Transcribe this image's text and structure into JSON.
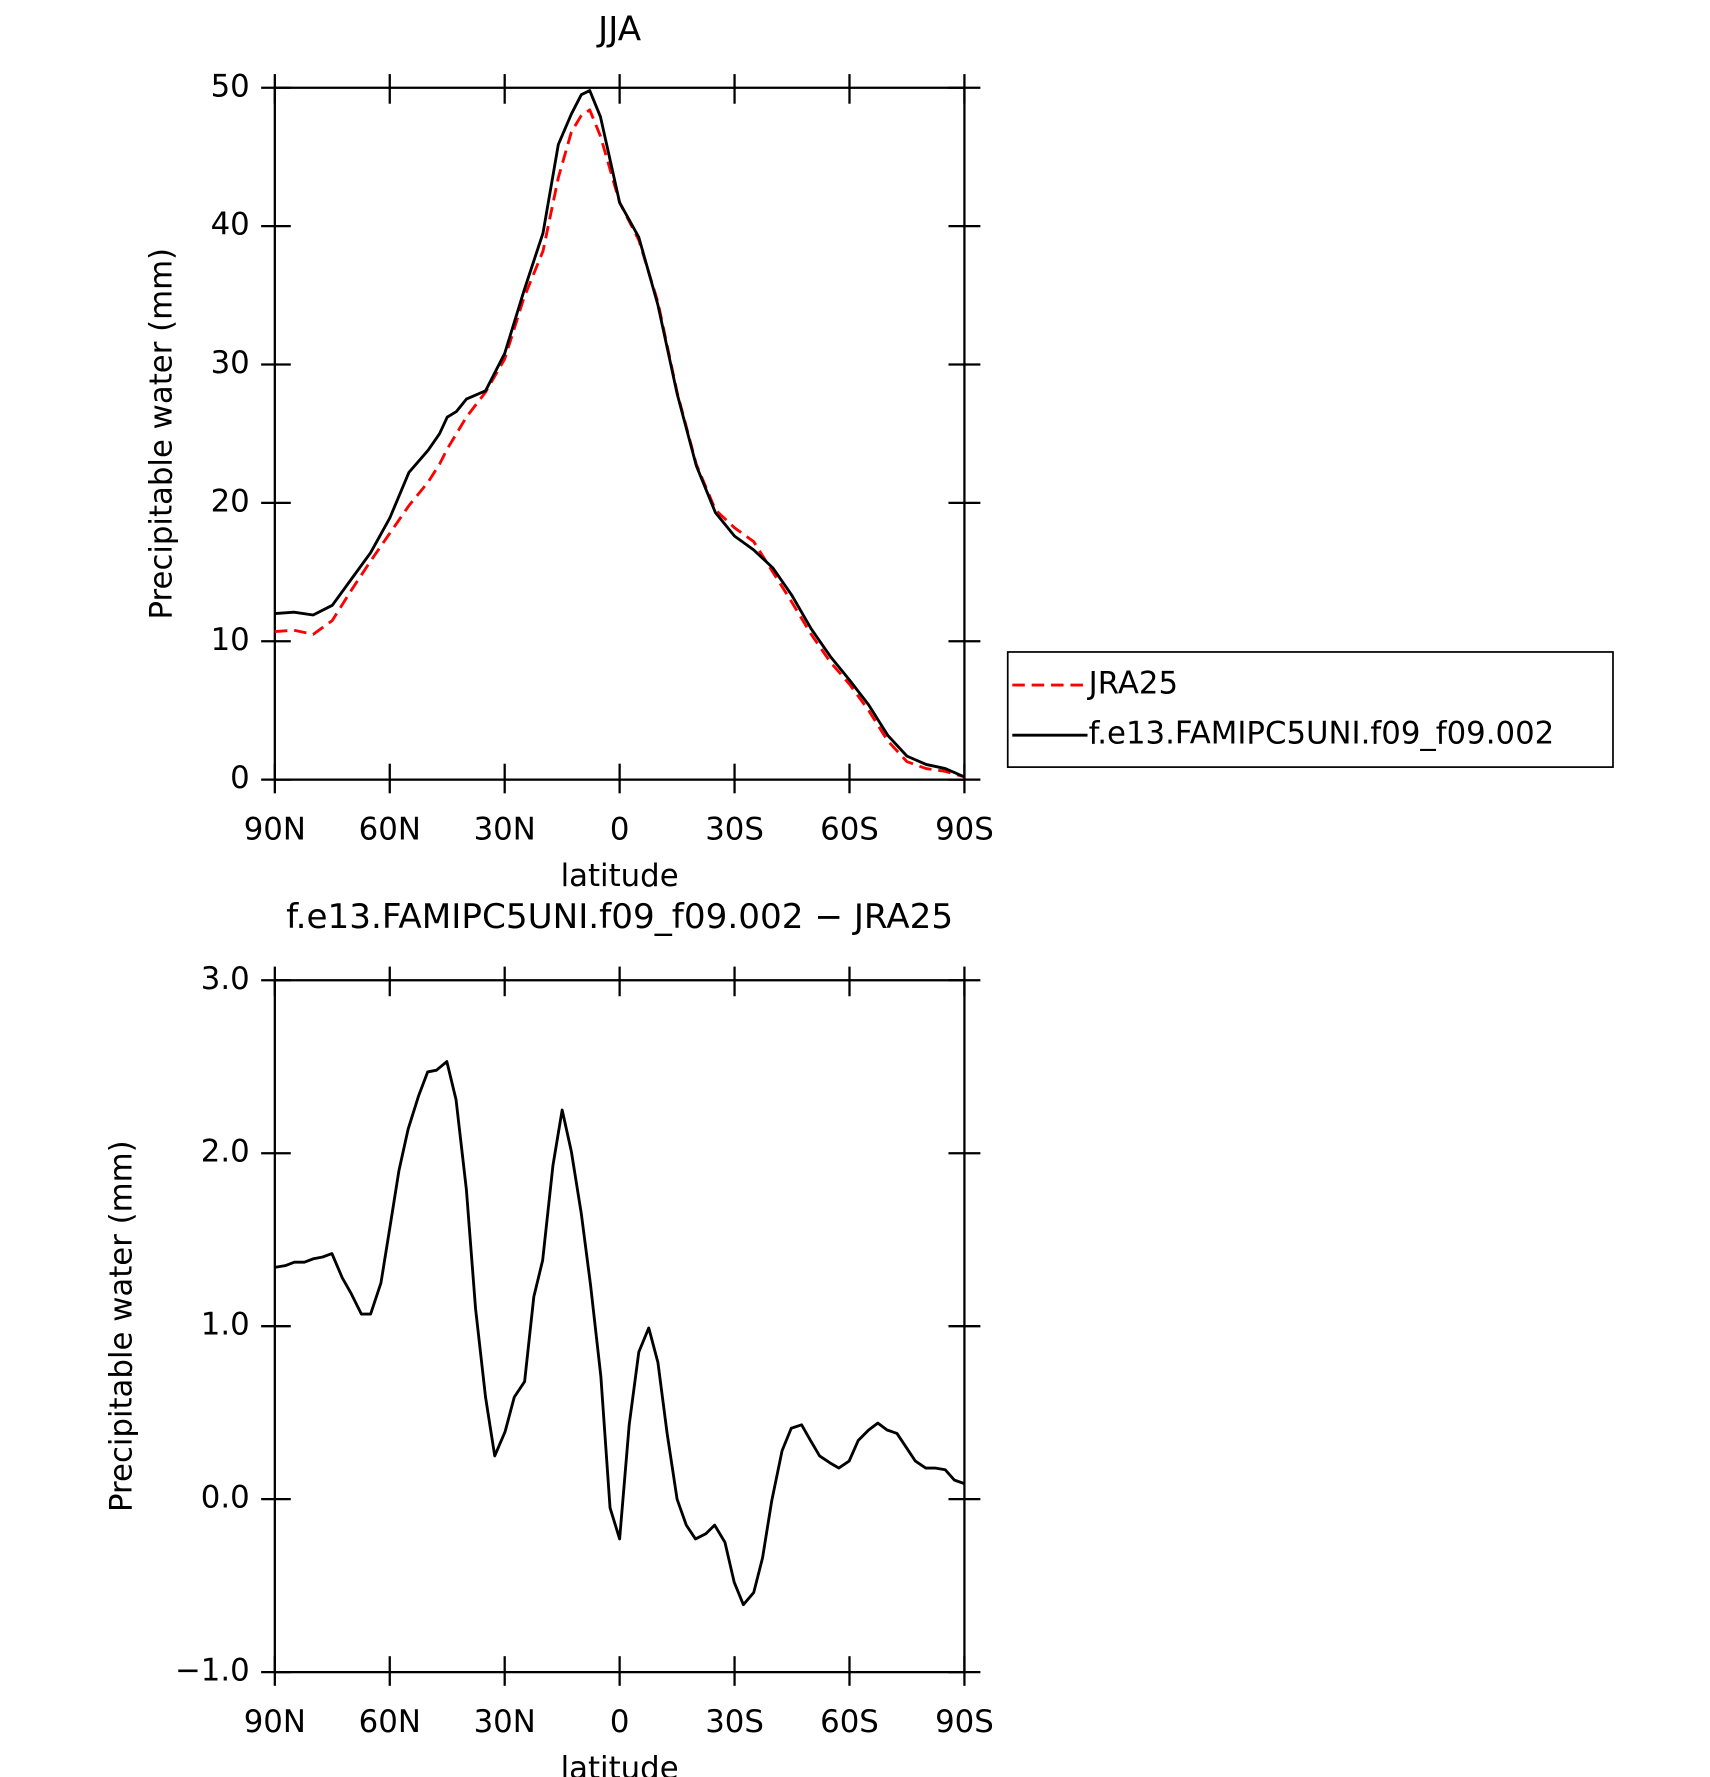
{
  "chart_data": [
    {
      "type": "line",
      "title": "JJA",
      "x_label": "latitude",
      "y_label": "Precipitable water (mm)",
      "x": [
        90,
        85,
        80,
        75,
        70,
        65,
        60,
        55,
        50,
        47,
        45,
        42.6,
        40,
        35,
        30,
        25,
        20,
        16,
        12.6,
        10,
        7.8,
        5,
        0,
        -5,
        -10,
        -15,
        -20,
        -25,
        -30,
        -33,
        -35,
        -40,
        -45,
        -50,
        -55,
        -60,
        -65,
        -70,
        -75,
        -80,
        -85,
        -90
      ],
      "series": [
        {
          "name": "JRA25",
          "color": "#ff0000",
          "line_style": "dashed",
          "values": [
            10.7,
            10.8,
            10.5,
            11.5,
            13.7,
            15.8,
            17.8,
            19.8,
            21.5,
            22.8,
            23.9,
            25.0,
            26.2,
            28.0,
            30.4,
            34.8,
            38.2,
            43.5,
            46.8,
            48.0,
            48.4,
            46.5,
            41.7,
            39.0,
            34.5,
            28.0,
            22.8,
            19.5,
            18.2,
            17.6,
            17.2,
            15.0,
            12.8,
            10.5,
            8.5,
            6.9,
            5.0,
            2.8,
            1.3,
            0.8,
            0.6,
            0.2
          ]
        },
        {
          "name": "f.e13.FAMIPC5UNI.f09_f09.002",
          "color": "#000000",
          "line_style": "solid",
          "values": [
            12.0,
            12.1,
            11.9,
            12.6,
            14.5,
            16.4,
            18.9,
            22.2,
            23.8,
            25.0,
            26.2,
            26.6,
            27.5,
            28.1,
            30.8,
            35.3,
            39.5,
            45.9,
            48.1,
            49.5,
            49.8,
            47.9,
            41.7,
            39.2,
            34.3,
            27.9,
            22.7,
            19.3,
            17.6,
            17.0,
            16.6,
            15.3,
            13.3,
            10.9,
            8.9,
            7.2,
            5.4,
            3.2,
            1.7,
            1.1,
            0.8,
            0.2
          ]
        }
      ],
      "xlim": [
        90,
        -90
      ],
      "xticks": [
        {
          "value": 90,
          "label": "90N"
        },
        {
          "value": 60,
          "label": "60N"
        },
        {
          "value": 30,
          "label": "30N"
        },
        0,
        {
          "value": -30,
          "label": "30S"
        },
        {
          "value": -60,
          "label": "60S"
        },
        {
          "value": -90,
          "label": "90S"
        }
      ],
      "ylim": [
        0,
        50
      ],
      "yticks": [
        0,
        10,
        20,
        30,
        40,
        50
      ],
      "legend": "right"
    },
    {
      "type": "line",
      "title": "f.e13.FAMIPC5UNI.f09_f09.002 − JRA25",
      "x_label": "latitude",
      "y_label": "Precipitable water (mm)",
      "x": [
        90,
        87.3,
        84.9,
        82.3,
        79.9,
        77.5,
        75.1,
        72.4,
        70.1,
        67.4,
        65.0,
        62.3,
        59.9,
        57.6,
        55.2,
        52.5,
        50.1,
        47.8,
        45.1,
        42.7,
        40.0,
        37.6,
        35.0,
        32.6,
        29.9,
        27.5,
        24.8,
        22.4,
        20.1,
        17.4,
        15.0,
        12.6,
        10.0,
        7.6,
        4.9,
        2.5,
        0,
        -2.5,
        -5.0,
        -7.6,
        -10.0,
        -12.4,
        -15.0,
        -17.4,
        -19.8,
        -22.5,
        -24.8,
        -27.5,
        -29.9,
        -32.3,
        -35.0,
        -37.3,
        -39.7,
        -42.4,
        -44.8,
        -47.5,
        -49.8,
        -52.2,
        -54.9,
        -57.2,
        -59.9,
        -62.3,
        -65.0,
        -67.4,
        -69.8,
        -72.4,
        -74.8,
        -77.2,
        -79.9,
        -82.3,
        -85.0,
        -87.4,
        -90
      ],
      "series": [
        {
          "color": "#000000",
          "line_style": "solid",
          "values": [
            1.34,
            1.35,
            1.37,
            1.37,
            1.39,
            1.4,
            1.42,
            1.28,
            1.19,
            1.07,
            1.07,
            1.25,
            1.58,
            1.9,
            2.14,
            2.33,
            2.47,
            2.48,
            2.53,
            2.31,
            1.79,
            1.1,
            0.59,
            0.25,
            0.39,
            0.59,
            0.68,
            1.17,
            1.38,
            1.93,
            2.25,
            2.01,
            1.65,
            1.24,
            0.71,
            -0.05,
            -0.23,
            0.43,
            0.85,
            0.99,
            0.79,
            0.38,
            0.0,
            -0.15,
            -0.23,
            -0.2,
            -0.15,
            -0.25,
            -0.48,
            -0.61,
            -0.54,
            -0.34,
            -0.01,
            0.28,
            0.41,
            0.43,
            0.34,
            0.25,
            0.21,
            0.18,
            0.22,
            0.34,
            0.4,
            0.44,
            0.4,
            0.38,
            0.3,
            0.22,
            0.18,
            0.18,
            0.17,
            0.11,
            0.09
          ]
        }
      ],
      "xlim": [
        90,
        -90
      ],
      "xticks": [
        {
          "value": 90,
          "label": "90N"
        },
        {
          "value": 60,
          "label": "60N"
        },
        {
          "value": 30,
          "label": "30N"
        },
        0,
        {
          "value": -30,
          "label": "30S"
        },
        {
          "value": -60,
          "label": "60S"
        },
        {
          "value": -90,
          "label": "90S"
        }
      ],
      "ylim": [
        -1,
        3
      ],
      "yticks": [
        {
          "value": -1,
          "label": "−1.0"
        },
        {
          "value": 0,
          "label": "0.0"
        },
        {
          "value": 1,
          "label": "1.0"
        },
        {
          "value": 2,
          "label": "2.0"
        },
        {
          "value": 3,
          "label": "3.0"
        }
      ]
    }
  ]
}
